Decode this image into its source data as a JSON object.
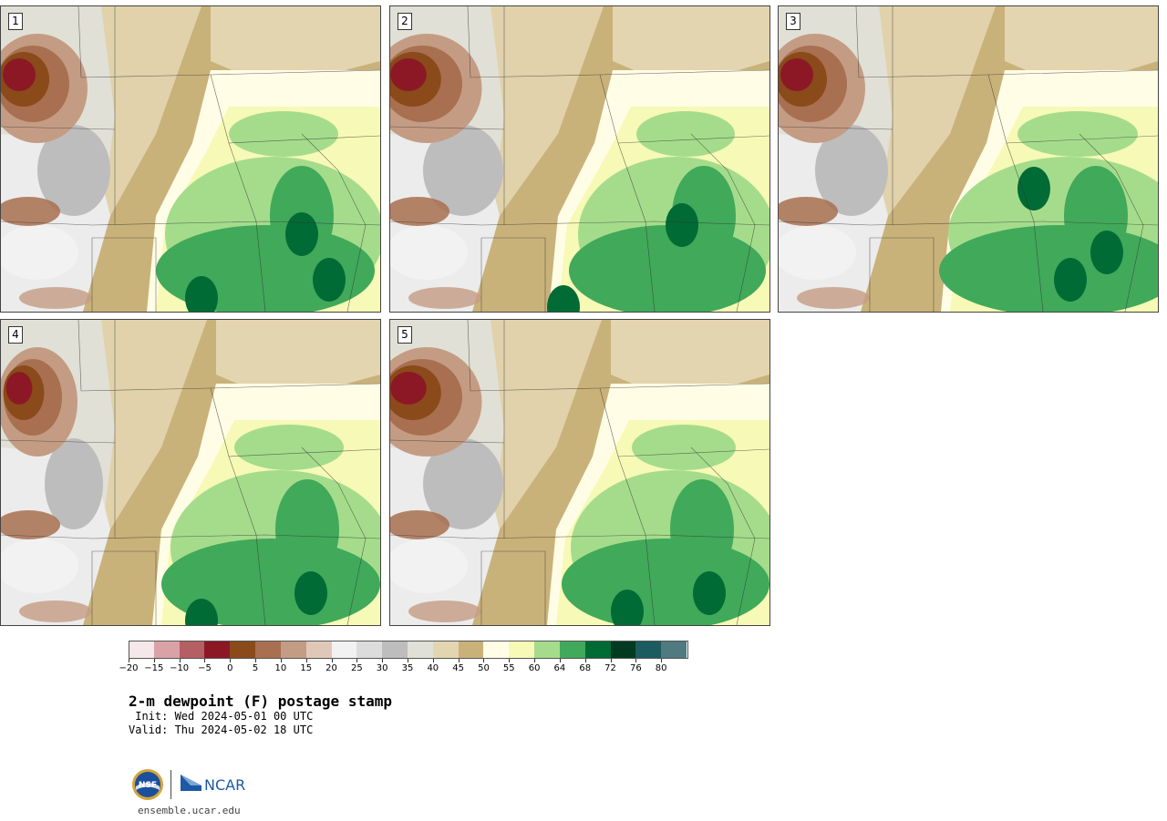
{
  "panels": [
    {
      "label": "1"
    },
    {
      "label": "2"
    },
    {
      "label": "3"
    },
    {
      "label": "4"
    },
    {
      "label": "5"
    }
  ],
  "colorbar": {
    "colors": [
      "#f4e8e8",
      "#d9a2a6",
      "#b45f64",
      "#8c1826",
      "#8a4a1a",
      "#a87050",
      "#c49c84",
      "#e0c8b8",
      "#f2f2f2",
      "#dcdcdc",
      "#bdbdbd",
      "#e1e0d6",
      "#e3d5b0",
      "#c9b27a",
      "#fffde6",
      "#f7f9b6",
      "#a5dc8c",
      "#41a95a",
      "#006b35",
      "#003a20",
      "#1a5c60",
      "#4e7a80"
    ],
    "tick_labels": [
      "-20",
      "-15",
      "-10",
      "-5",
      "0",
      "5",
      "10",
      "15",
      "20",
      "25",
      "30",
      "35",
      "40",
      "45",
      "50",
      "55",
      "60",
      "64",
      "68",
      "72",
      "76",
      "80"
    ]
  },
  "title": "2-m dewpoint (F) postage stamp",
  "init": " Init: Wed 2024-05-01 00 UTC",
  "valid": "Valid: Thu 2024-05-02 18 UTC",
  "logos": {
    "nsf_text": "NSF",
    "ncar_text": "NCAR"
  },
  "website": "ensemble.ucar.edu"
}
